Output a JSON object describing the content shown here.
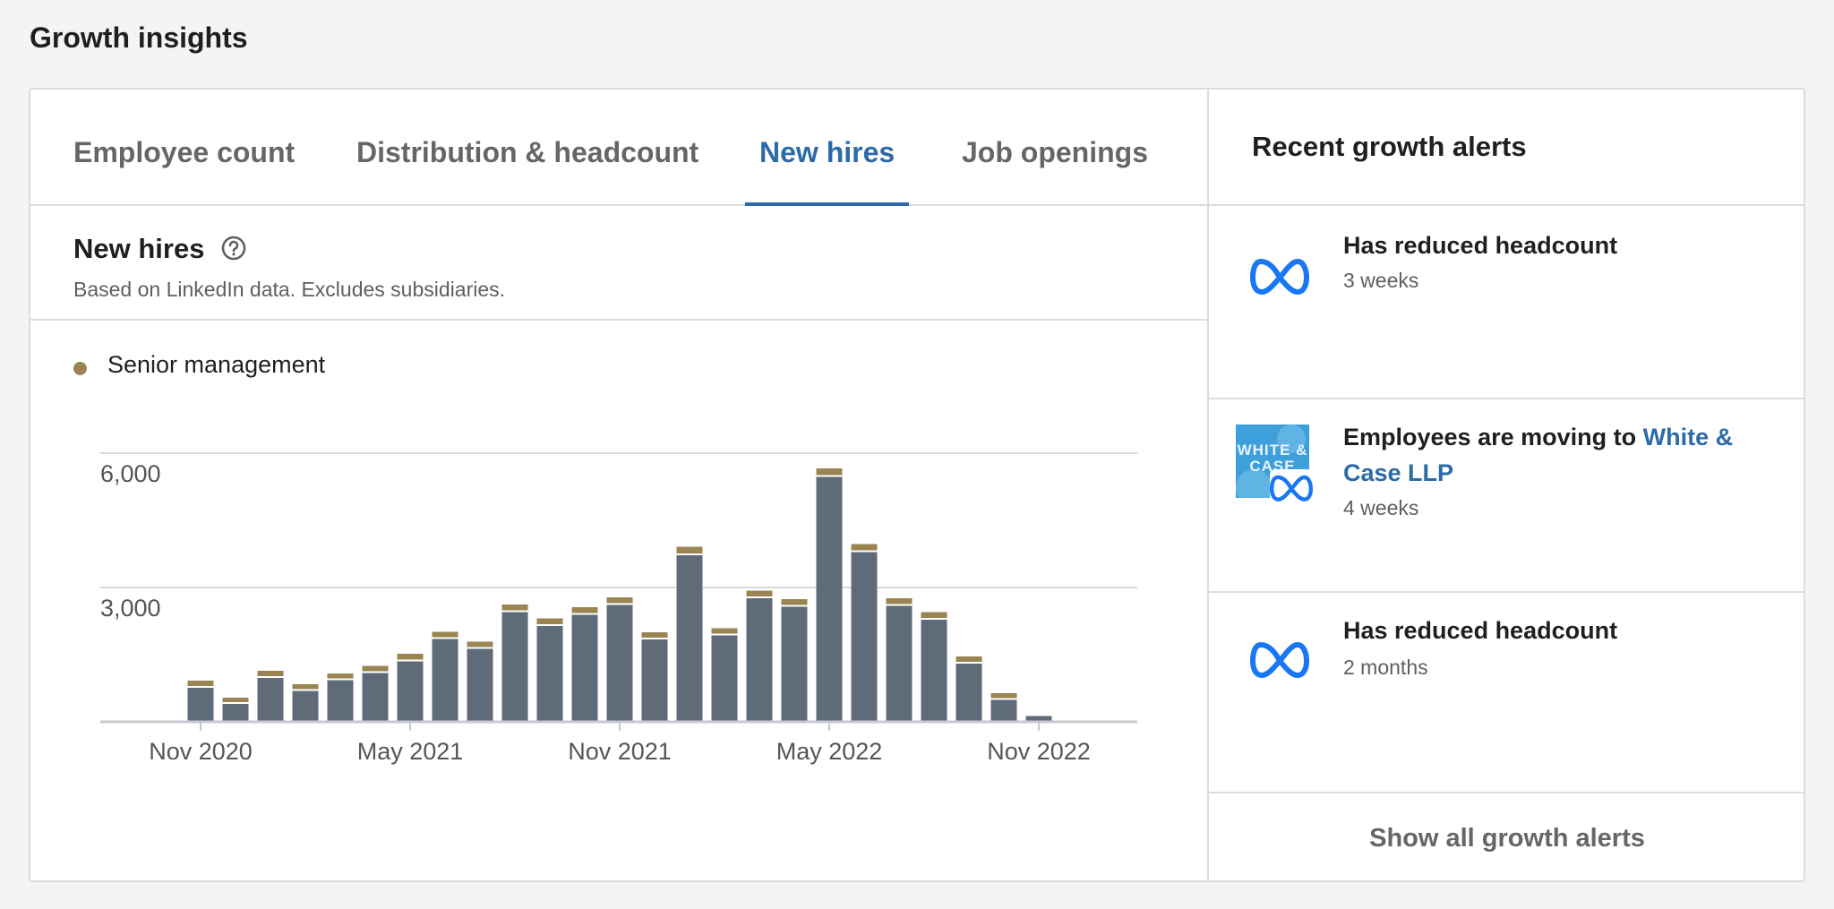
{
  "page": {
    "title": "Growth insights"
  },
  "tabs": [
    {
      "label": "Employee count",
      "active": false
    },
    {
      "label": "Distribution & headcount",
      "active": false
    },
    {
      "label": "New hires",
      "active": true
    },
    {
      "label": "Job openings",
      "active": false
    }
  ],
  "section": {
    "title": "New hires",
    "subtitle": "Based on LinkedIn data. Excludes subsidiaries.",
    "help_icon": "question-circle-icon"
  },
  "legend": {
    "label": "Senior management",
    "color": "#9a8552"
  },
  "colors": {
    "accent": "#2c6aa8",
    "bar": "#5f6b78",
    "senior_management": "#9a8552",
    "meta_blue": "#1877f2"
  },
  "chart_data": {
    "type": "bar",
    "stacked": true,
    "title": "",
    "xlabel": "",
    "ylabel": "",
    "yticks": [
      "6,000",
      "3,000"
    ],
    "ytick_values": [
      6000,
      3000
    ],
    "ylim": [
      0,
      6000
    ],
    "xticks": [
      "Nov 2020",
      "May 2021",
      "Nov 2021",
      "May 2022",
      "Nov 2022"
    ],
    "xtick_values": [
      "2020-11",
      "2021-05",
      "2021-11",
      "2022-05",
      "2022-11"
    ],
    "grid": true,
    "legend_position": "top-left",
    "categories": [
      "2020-11",
      "2020-12",
      "2021-01",
      "2021-02",
      "2021-03",
      "2021-04",
      "2021-05",
      "2021-06",
      "2021-07",
      "2021-08",
      "2021-09",
      "2021-10",
      "2021-11",
      "2021-12",
      "2022-01",
      "2022-02",
      "2022-03",
      "2022-04",
      "2022-05",
      "2022-06",
      "2022-07",
      "2022-08",
      "2022-09",
      "2022-10",
      "2022-11"
    ],
    "series": [
      {
        "name": "",
        "values": [
          760,
          400,
          980,
          690,
          930,
          1090,
          1350,
          1850,
          1630,
          2450,
          2140,
          2390,
          2610,
          1840,
          3720,
          1930,
          2760,
          2570,
          5470,
          3790,
          2590,
          2280,
          1300,
          490,
          130
        ]
      },
      {
        "name": "Senior management",
        "values": [
          120,
          100,
          120,
          110,
          110,
          120,
          130,
          120,
          120,
          130,
          130,
          130,
          130,
          120,
          150,
          120,
          130,
          130,
          150,
          140,
          130,
          130,
          120,
          110,
          0
        ]
      }
    ]
  },
  "alerts": {
    "title": "Recent growth alerts",
    "items": [
      {
        "logo": "meta-logo-icon",
        "text": "Has reduced headcount",
        "link": "",
        "time": "3 weeks"
      },
      {
        "logo": "white-case-logo-icon",
        "logo_text": "WHITE & CASE",
        "text": "Employees are moving to ",
        "link": "White & Case LLP",
        "time": "4 weeks"
      },
      {
        "logo": "meta-logo-icon",
        "text": "Has reduced headcount",
        "link": "",
        "time": "2 months"
      }
    ],
    "show_all": "Show all growth alerts"
  }
}
